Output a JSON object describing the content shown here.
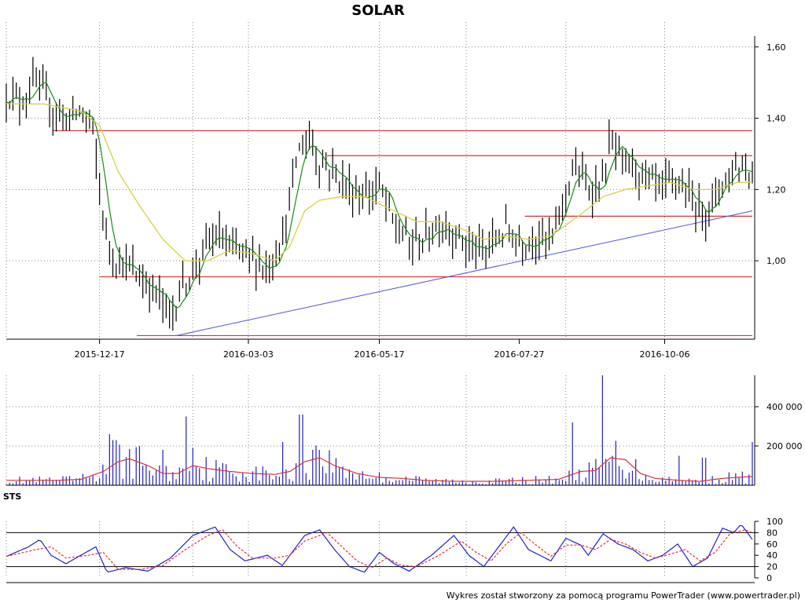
{
  "chart_data": [
    {
      "type": "candlestick",
      "title": "SOLAR",
      "x_ticks": [
        "2015-12-17",
        "2016-03-03",
        "2016-05-17",
        "2016-07-27",
        "2016-10-06"
      ],
      "y_ticks": [
        "1,60",
        "1,40",
        "1,20",
        "1,00"
      ],
      "y_tick_values": [
        1.6,
        1.4,
        1.2,
        1.0
      ],
      "ylim": [
        0.78,
        1.67
      ],
      "grid": true,
      "colors": {
        "bars": "#000000",
        "ma_short": "#1a8a1a",
        "ma_long": "#d8d048",
        "support": "#e03030",
        "trend": "#5050e0"
      },
      "horizontal_levels": [
        {
          "value": 1.365,
          "from": 0.0625,
          "to": 1.0
        },
        {
          "value": 1.295,
          "from": 0.43,
          "to": 1.0
        },
        {
          "value": 1.125,
          "from": 0.695,
          "to": 1.0
        },
        {
          "value": 0.955,
          "from": 0.125,
          "to": 1.0
        },
        {
          "value": 0.79,
          "from": 0.175,
          "to": 1.0
        }
      ],
      "trend_line": {
        "from": [
          0.228,
          0.79
        ],
        "to": [
          1.0,
          1.14
        ]
      },
      "price_keypoints": [
        [
          0.0,
          1.47
        ],
        [
          0.02,
          1.45
        ],
        [
          0.04,
          1.5
        ],
        [
          0.06,
          1.43
        ],
        [
          0.08,
          1.4
        ],
        [
          0.1,
          1.42
        ],
        [
          0.115,
          1.38
        ],
        [
          0.125,
          1.2
        ],
        [
          0.135,
          1.05
        ],
        [
          0.15,
          1.0
        ],
        [
          0.17,
          0.97
        ],
        [
          0.19,
          0.93
        ],
        [
          0.205,
          0.9
        ],
        [
          0.22,
          0.84
        ],
        [
          0.235,
          0.93
        ],
        [
          0.25,
          0.97
        ],
        [
          0.27,
          1.05
        ],
        [
          0.285,
          1.07
        ],
        [
          0.3,
          1.03
        ],
        [
          0.32,
          1.02
        ],
        [
          0.35,
          0.98
        ],
        [
          0.36,
          1.02
        ],
        [
          0.375,
          1.1
        ],
        [
          0.39,
          1.3
        ],
        [
          0.405,
          1.35
        ],
        [
          0.42,
          1.28
        ],
        [
          0.44,
          1.25
        ],
        [
          0.46,
          1.2
        ],
        [
          0.48,
          1.18
        ],
        [
          0.5,
          1.21
        ],
        [
          0.52,
          1.1
        ],
        [
          0.54,
          1.05
        ],
        [
          0.56,
          1.06
        ],
        [
          0.58,
          1.11
        ],
        [
          0.6,
          1.08
        ],
        [
          0.62,
          1.04
        ],
        [
          0.64,
          1.02
        ],
        [
          0.655,
          1.06
        ],
        [
          0.67,
          1.09
        ],
        [
          0.69,
          1.05
        ],
        [
          0.71,
          1.07
        ],
        [
          0.73,
          1.05
        ],
        [
          0.745,
          1.15
        ],
        [
          0.76,
          1.27
        ],
        [
          0.78,
          1.2
        ],
        [
          0.8,
          1.22
        ],
        [
          0.81,
          1.34
        ],
        [
          0.825,
          1.27
        ],
        [
          0.84,
          1.27
        ],
        [
          0.86,
          1.22
        ],
        [
          0.88,
          1.2
        ],
        [
          0.9,
          1.23
        ],
        [
          0.92,
          1.16
        ],
        [
          0.94,
          1.14
        ],
        [
          0.96,
          1.22
        ],
        [
          0.98,
          1.27
        ],
        [
          1.0,
          1.25
        ]
      ],
      "ma_long_keypoints": [
        [
          0.0,
          1.44
        ],
        [
          0.05,
          1.44
        ],
        [
          0.1,
          1.42
        ],
        [
          0.125,
          1.38
        ],
        [
          0.15,
          1.25
        ],
        [
          0.18,
          1.15
        ],
        [
          0.21,
          1.06
        ],
        [
          0.24,
          1.0
        ],
        [
          0.27,
          1.0
        ],
        [
          0.3,
          1.03
        ],
        [
          0.33,
          1.02
        ],
        [
          0.36,
          1.0
        ],
        [
          0.38,
          1.04
        ],
        [
          0.4,
          1.14
        ],
        [
          0.42,
          1.17
        ],
        [
          0.45,
          1.18
        ],
        [
          0.48,
          1.18
        ],
        [
          0.52,
          1.14
        ],
        [
          0.55,
          1.11
        ],
        [
          0.58,
          1.11
        ],
        [
          0.61,
          1.09
        ],
        [
          0.64,
          1.06
        ],
        [
          0.67,
          1.07
        ],
        [
          0.7,
          1.06
        ],
        [
          0.73,
          1.07
        ],
        [
          0.75,
          1.1
        ],
        [
          0.77,
          1.13
        ],
        [
          0.8,
          1.18
        ],
        [
          0.83,
          1.2
        ],
        [
          0.86,
          1.21
        ],
        [
          0.89,
          1.22
        ],
        [
          0.92,
          1.2
        ],
        [
          0.95,
          1.2
        ],
        [
          0.98,
          1.22
        ],
        [
          1.0,
          1.22
        ]
      ]
    },
    {
      "type": "bar",
      "title": "",
      "y_ticks": [
        "400 000",
        "200 000"
      ],
      "y_tick_values": [
        400000,
        200000
      ],
      "ylim": [
        0,
        560000
      ],
      "colors": {
        "bars": "#2020c0",
        "average": "#e03030"
      },
      "spikes": [
        [
          0.14,
          260000
        ],
        [
          0.145,
          230000
        ],
        [
          0.21,
          180000
        ],
        [
          0.24,
          350000
        ],
        [
          0.25,
          190000
        ],
        [
          0.37,
          220000
        ],
        [
          0.395,
          360000
        ],
        [
          0.42,
          180000
        ],
        [
          0.76,
          320000
        ],
        [
          0.8,
          560000
        ],
        [
          0.9,
          150000
        ],
        [
          0.935,
          140000
        ],
        [
          1.0,
          220000
        ]
      ],
      "average_keypoints": [
        [
          0.0,
          25000
        ],
        [
          0.07,
          25000
        ],
        [
          0.1,
          30000
        ],
        [
          0.13,
          70000
        ],
        [
          0.15,
          120000
        ],
        [
          0.165,
          135000
        ],
        [
          0.19,
          100000
        ],
        [
          0.21,
          60000
        ],
        [
          0.23,
          60000
        ],
        [
          0.25,
          100000
        ],
        [
          0.27,
          85000
        ],
        [
          0.3,
          70000
        ],
        [
          0.33,
          60000
        ],
        [
          0.36,
          55000
        ],
        [
          0.38,
          70000
        ],
        [
          0.4,
          120000
        ],
        [
          0.42,
          140000
        ],
        [
          0.44,
          100000
        ],
        [
          0.47,
          60000
        ],
        [
          0.5,
          40000
        ],
        [
          0.53,
          35000
        ],
        [
          0.56,
          25000
        ],
        [
          0.6,
          20000
        ],
        [
          0.65,
          20000
        ],
        [
          0.7,
          25000
        ],
        [
          0.74,
          30000
        ],
        [
          0.77,
          70000
        ],
        [
          0.79,
          75000
        ],
        [
          0.81,
          140000
        ],
        [
          0.83,
          130000
        ],
        [
          0.85,
          60000
        ],
        [
          0.87,
          35000
        ],
        [
          0.9,
          25000
        ],
        [
          0.93,
          20000
        ],
        [
          0.96,
          35000
        ],
        [
          1.0,
          45000
        ]
      ]
    },
    {
      "type": "line",
      "title": "STS",
      "y_ticks": [
        "100",
        "80",
        "60",
        "40",
        "20",
        "0"
      ],
      "y_tick_values": [
        100,
        80,
        60,
        40,
        20,
        0
      ],
      "ylim": [
        0,
        100
      ],
      "reference_lines": [
        80,
        20
      ],
      "colors": {
        "fast": "#2020d0",
        "slow": "#e03030"
      },
      "fast_keypoints": [
        [
          0.0,
          38
        ],
        [
          0.03,
          55
        ],
        [
          0.045,
          68
        ],
        [
          0.06,
          40
        ],
        [
          0.08,
          25
        ],
        [
          0.1,
          40
        ],
        [
          0.12,
          55
        ],
        [
          0.135,
          10
        ],
        [
          0.16,
          18
        ],
        [
          0.19,
          12
        ],
        [
          0.22,
          35
        ],
        [
          0.25,
          75
        ],
        [
          0.28,
          90
        ],
        [
          0.3,
          50
        ],
        [
          0.32,
          30
        ],
        [
          0.35,
          40
        ],
        [
          0.37,
          22
        ],
        [
          0.4,
          75
        ],
        [
          0.42,
          85
        ],
        [
          0.44,
          50
        ],
        [
          0.46,
          20
        ],
        [
          0.48,
          10
        ],
        [
          0.5,
          45
        ],
        [
          0.52,
          25
        ],
        [
          0.54,
          12
        ],
        [
          0.57,
          40
        ],
        [
          0.6,
          75
        ],
        [
          0.62,
          40
        ],
        [
          0.64,
          20
        ],
        [
          0.66,
          55
        ],
        [
          0.68,
          90
        ],
        [
          0.7,
          50
        ],
        [
          0.73,
          30
        ],
        [
          0.75,
          70
        ],
        [
          0.77,
          58
        ],
        [
          0.78,
          40
        ],
        [
          0.8,
          78
        ],
        [
          0.82,
          60
        ],
        [
          0.84,
          50
        ],
        [
          0.86,
          30
        ],
        [
          0.88,
          40
        ],
        [
          0.9,
          60
        ],
        [
          0.92,
          20
        ],
        [
          0.94,
          35
        ],
        [
          0.96,
          88
        ],
        [
          0.975,
          80
        ],
        [
          0.985,
          95
        ],
        [
          1.0,
          68
        ]
      ],
      "slow_keypoints": [
        [
          0.0,
          38
        ],
        [
          0.04,
          50
        ],
        [
          0.06,
          55
        ],
        [
          0.08,
          35
        ],
        [
          0.11,
          40
        ],
        [
          0.13,
          45
        ],
        [
          0.15,
          15
        ],
        [
          0.18,
          15
        ],
        [
          0.21,
          22
        ],
        [
          0.24,
          50
        ],
        [
          0.27,
          75
        ],
        [
          0.29,
          85
        ],
        [
          0.31,
          55
        ],
        [
          0.33,
          35
        ],
        [
          0.36,
          35
        ],
        [
          0.38,
          40
        ],
        [
          0.4,
          65
        ],
        [
          0.43,
          80
        ],
        [
          0.45,
          55
        ],
        [
          0.47,
          30
        ],
        [
          0.49,
          18
        ],
        [
          0.51,
          35
        ],
        [
          0.53,
          22
        ],
        [
          0.55,
          20
        ],
        [
          0.58,
          40
        ],
        [
          0.61,
          65
        ],
        [
          0.63,
          45
        ],
        [
          0.65,
          30
        ],
        [
          0.67,
          60
        ],
        [
          0.69,
          80
        ],
        [
          0.71,
          58
        ],
        [
          0.73,
          38
        ],
        [
          0.75,
          58
        ],
        [
          0.77,
          58
        ],
        [
          0.79,
          50
        ],
        [
          0.81,
          68
        ],
        [
          0.83,
          60
        ],
        [
          0.85,
          45
        ],
        [
          0.87,
          35
        ],
        [
          0.89,
          42
        ],
        [
          0.91,
          50
        ],
        [
          0.93,
          30
        ],
        [
          0.95,
          45
        ],
        [
          0.97,
          78
        ],
        [
          0.99,
          85
        ],
        [
          1.0,
          80
        ]
      ]
    }
  ],
  "footer": "Wykres został stworzony za pomocą programu PowerTrader (www.powertrader.pl)"
}
